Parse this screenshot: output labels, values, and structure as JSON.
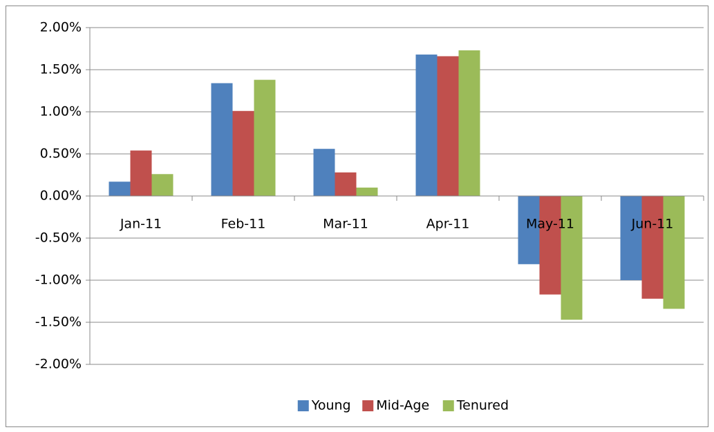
{
  "chart_data": {
    "type": "bar",
    "categories": [
      "Jan-11",
      "Feb-11",
      "Mar-11",
      "Apr-11",
      "May-11",
      "Jun-11"
    ],
    "series": [
      {
        "name": "Young",
        "color": "#4f81bd",
        "values": [
          0.17,
          1.34,
          0.56,
          1.68,
          -0.81,
          -1.0
        ]
      },
      {
        "name": "Mid-Age",
        "color": "#c0504d",
        "values": [
          0.54,
          1.01,
          0.28,
          1.66,
          -1.17,
          -1.22
        ]
      },
      {
        "name": "Tenured",
        "color": "#9bbb59",
        "values": [
          0.26,
          1.38,
          0.1,
          1.73,
          -1.47,
          -1.34
        ]
      }
    ],
    "ylim": [
      -2,
      2
    ],
    "yticks": [
      {
        "value": -2,
        "label": "-2.00%"
      },
      {
        "value": -1.5,
        "label": "-1.50%"
      },
      {
        "value": -1,
        "label": "-1.00%"
      },
      {
        "value": -0.5,
        "label": "-0.50%"
      },
      {
        "value": 0,
        "label": "0.00%"
      },
      {
        "value": 0.5,
        "label": "0.50%"
      },
      {
        "value": 1,
        "label": "1.00%"
      },
      {
        "value": 1.5,
        "label": "1.50%"
      },
      {
        "value": 2,
        "label": "2.00%"
      }
    ],
    "grid": true,
    "legend": "bottom"
  }
}
